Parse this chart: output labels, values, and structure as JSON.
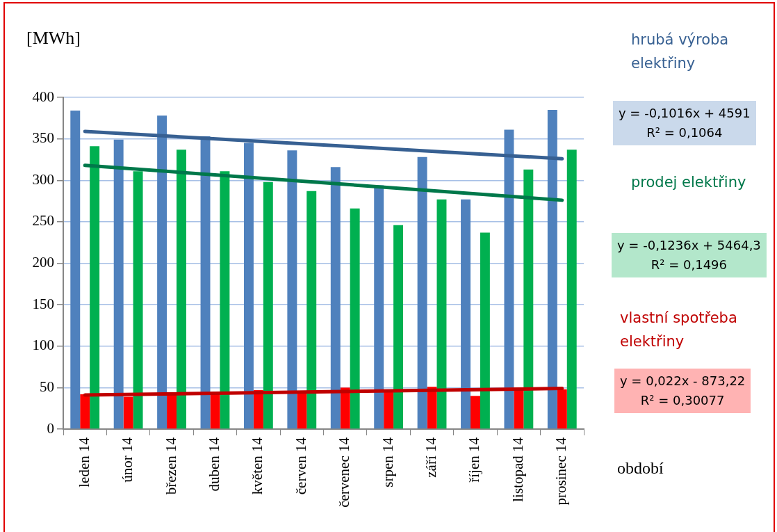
{
  "chart_data": {
    "type": "bar",
    "ylabel": "[MWh]",
    "xlabel": "období",
    "categories": [
      "leden 14",
      "únor 14",
      "březen 14",
      "duben 14",
      "květen 14",
      "červen 14",
      "červenec 14",
      "srpen 14",
      "září 14",
      "říjen 14",
      "listopad 14",
      "prosinec 14"
    ],
    "series": [
      {
        "name": "hrubá výroba elektřiny",
        "color": "#4f81bd",
        "values": [
          384,
          349,
          378,
          353,
          345,
          336,
          316,
          294,
          328,
          277,
          361,
          385
        ]
      },
      {
        "name": "vlastní spotřeba elektřiny",
        "color": "#ff0000",
        "values": [
          42,
          39,
          42,
          42,
          47,
          45,
          50,
          45,
          51,
          40,
          47,
          48
        ]
      },
      {
        "name": "prodej elektřiny",
        "color": "#00b050",
        "values": [
          341,
          311,
          337,
          311,
          298,
          287,
          266,
          246,
          277,
          237,
          313,
          337
        ]
      },
      {
        "type": "line",
        "color": "#376092",
        "values": [
          359,
          null,
          null,
          null,
          null,
          null,
          null,
          null,
          null,
          null,
          null,
          326
        ]
      },
      {
        "type": "line",
        "color": "#c00000",
        "values": [
          41,
          null,
          null,
          null,
          null,
          null,
          null,
          null,
          null,
          null,
          null,
          49
        ]
      },
      {
        "type": "line",
        "color": "#00784a",
        "values": [
          318,
          null,
          null,
          null,
          null,
          null,
          null,
          null,
          null,
          null,
          null,
          276
        ]
      }
    ],
    "annotations": [
      "y = -0,1016x + 4591\nR² = 0,1064",
      "y = 0,022x - 873,22\nR² = 0,30077",
      "y = -0,1236x + 5464,3\nR² = 0,1496"
    ],
    "ylim": [
      0,
      400
    ],
    "yticks": [
      0,
      50,
      100,
      150,
      200,
      250,
      300,
      350,
      400
    ],
    "grid": "y",
    "legend": false
  }
}
